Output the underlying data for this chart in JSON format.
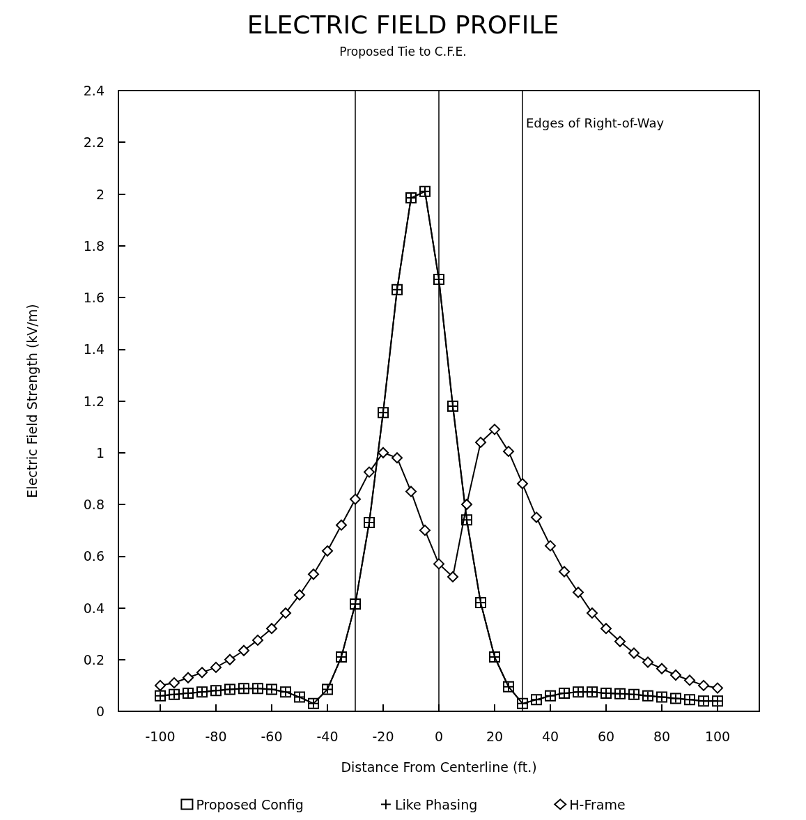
{
  "chart_data": {
    "type": "line",
    "title": "ELECTRIC FIELD PROFILE",
    "subtitle": "Proposed Tie to C.F.E.",
    "xlabel": "Distance From Centerline (ft.)",
    "ylabel": "Electric Field Strength (kV/m)",
    "x": [
      -100,
      -95,
      -90,
      -85,
      -80,
      -75,
      -70,
      -65,
      -60,
      -55,
      -50,
      -45,
      -40,
      -35,
      -30,
      -25,
      -20,
      -15,
      -10,
      -5,
      0,
      5,
      10,
      15,
      20,
      25,
      30,
      35,
      40,
      45,
      50,
      55,
      60,
      65,
      70,
      75,
      80,
      85,
      90,
      95,
      100
    ],
    "series": [
      {
        "name": "Proposed Config",
        "color": "#000000",
        "marker": "square",
        "values": [
          0.06,
          0.065,
          0.07,
          0.075,
          0.08,
          0.085,
          0.088,
          0.088,
          0.085,
          0.075,
          0.055,
          0.03,
          0.085,
          0.21,
          0.415,
          0.73,
          1.155,
          1.63,
          1.985,
          2.01,
          1.67,
          1.18,
          0.74,
          0.42,
          0.21,
          0.095,
          0.03,
          0.045,
          0.06,
          0.07,
          0.075,
          0.075,
          0.07,
          0.068,
          0.065,
          0.06,
          0.055,
          0.05,
          0.045,
          0.04,
          0.04
        ]
      },
      {
        "name": "Like Phasing",
        "color": "#000000",
        "marker": "cross",
        "values": [
          0.06,
          0.065,
          0.07,
          0.075,
          0.08,
          0.085,
          0.088,
          0.088,
          0.085,
          0.075,
          0.055,
          0.03,
          0.085,
          0.21,
          0.415,
          0.73,
          1.155,
          1.63,
          1.985,
          2.01,
          1.67,
          1.18,
          0.74,
          0.42,
          0.21,
          0.095,
          0.03,
          0.045,
          0.06,
          0.07,
          0.075,
          0.075,
          0.07,
          0.068,
          0.065,
          0.06,
          0.055,
          0.05,
          0.045,
          0.04,
          0.04
        ]
      },
      {
        "name": "H-Frame",
        "color": "#000000",
        "marker": "diamond",
        "values": [
          0.1,
          0.11,
          0.13,
          0.15,
          0.17,
          0.2,
          0.235,
          0.275,
          0.32,
          0.38,
          0.45,
          0.53,
          0.62,
          0.72,
          0.82,
          0.925,
          1.0,
          0.98,
          0.85,
          0.7,
          0.57,
          0.52,
          0.8,
          1.04,
          1.09,
          1.005,
          0.88,
          0.75,
          0.64,
          0.54,
          0.46,
          0.38,
          0.32,
          0.27,
          0.225,
          0.19,
          0.165,
          0.14,
          0.12,
          0.1,
          0.09
        ]
      }
    ],
    "xlim": [
      -115,
      115
    ],
    "xticks": [
      -100,
      -80,
      -60,
      -40,
      -20,
      0,
      20,
      40,
      60,
      80,
      100
    ],
    "ylim": [
      0,
      2.4
    ],
    "yticks": [
      0,
      0.2,
      0.4,
      0.6,
      0.8,
      1,
      1.2,
      1.4,
      1.6,
      1.8,
      2,
      2.2,
      2.4
    ],
    "ref_lines": [
      {
        "axis": "x",
        "value": -30,
        "label": null
      },
      {
        "axis": "x",
        "value": 0,
        "label": null
      },
      {
        "axis": "x",
        "value": 30,
        "label": "Edges of Right-of-Way"
      }
    ],
    "grid": false,
    "legend": "bottom",
    "line_style": "solid"
  }
}
